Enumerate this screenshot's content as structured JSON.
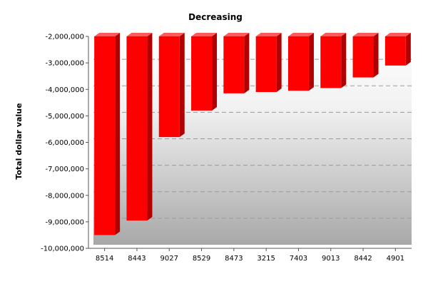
{
  "chart_data": {
    "type": "bar",
    "title": "Decreasing",
    "xlabel": "",
    "ylabel": "Total dollar value",
    "categories": [
      "8514",
      "8443",
      "9027",
      "8529",
      "8473",
      "3215",
      "7403",
      "9013",
      "8442",
      "4901"
    ],
    "values": [
      -9500000,
      -8950000,
      -5800000,
      -4800000,
      -4150000,
      -4100000,
      -4050000,
      -3950000,
      -3550000,
      -3100000
    ],
    "bar_base": -2000000,
    "ylim": [
      -10000000,
      -2000000
    ],
    "yticks": [
      -2000000,
      -3000000,
      -4000000,
      -5000000,
      -6000000,
      -7000000,
      -8000000,
      -9000000,
      -10000000
    ],
    "ytick_labels": [
      "-2,000,000",
      "-3,000,000",
      "-4,000,000",
      "-5,000,000",
      "-6,000,000",
      "-7,000,000",
      "-8,000,000",
      "-9,000,000",
      "-10,000,000"
    ],
    "grid": true,
    "legend": "none",
    "bar_color": "#ff0000",
    "bar_side_color": "#b00000",
    "bar_top_color": "#ff5a5a"
  }
}
